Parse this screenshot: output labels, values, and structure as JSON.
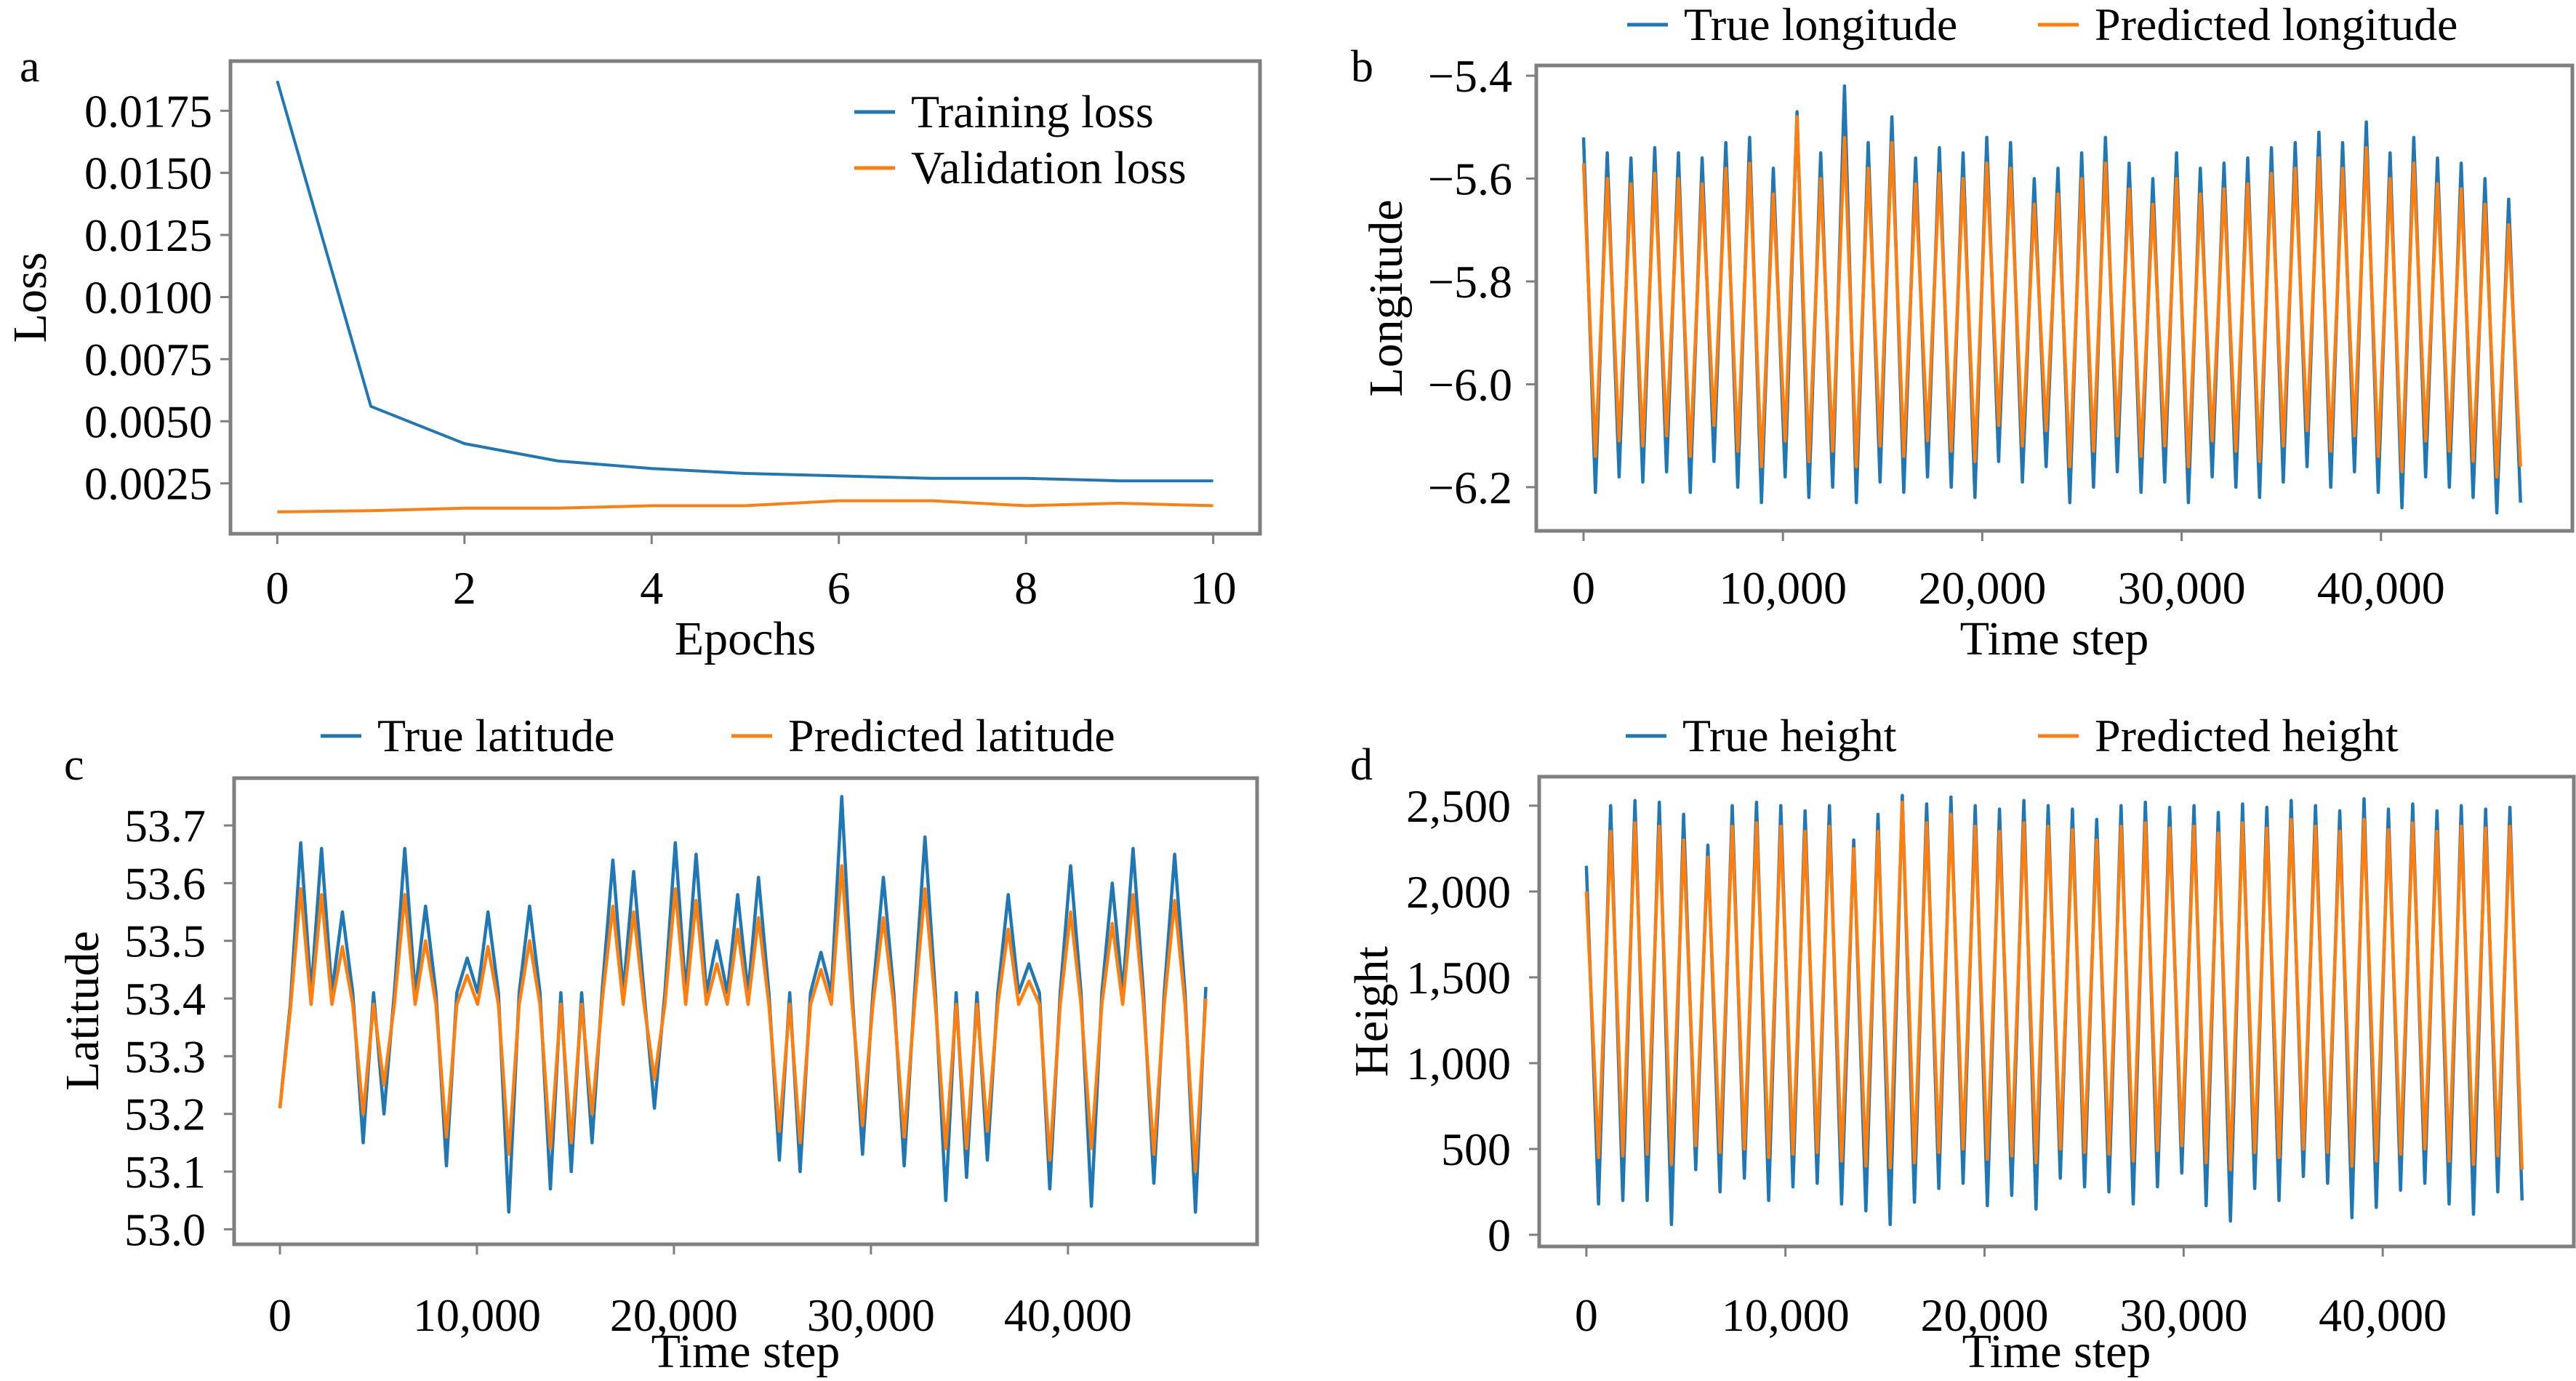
{
  "chart_data": [
    {
      "panel": "a",
      "type": "line",
      "xlabel": "Epochs",
      "ylabel": "Loss",
      "xlim": [
        -0.5,
        10.5
      ],
      "ylim": [
        0.00047,
        0.0195
      ],
      "x_ticks": [
        0,
        2,
        4,
        6,
        8,
        10
      ],
      "x_tick_labels": [
        "0",
        "2",
        "4",
        "6",
        "8",
        "10"
      ],
      "y_ticks": [
        0.0025,
        0.005,
        0.0075,
        0.01,
        0.0125,
        0.015,
        0.0175
      ],
      "y_tick_labels": [
        "0.0025",
        "0.0050",
        "0.0075",
        "0.0100",
        "0.0125",
        "0.0150",
        "0.0175"
      ],
      "legend_position": "top-right",
      "grid": false,
      "x": [
        0,
        1,
        2,
        3,
        4,
        5,
        6,
        7,
        8,
        9,
        10
      ],
      "series": [
        {
          "name": "Training loss",
          "color": "#1f77b4",
          "values": [
            0.0187,
            0.0056,
            0.0041,
            0.0034,
            0.0031,
            0.0029,
            0.0028,
            0.0027,
            0.0027,
            0.0026,
            0.0026
          ]
        },
        {
          "name": "Validation loss",
          "color": "#ff7f0e",
          "values": [
            0.00135,
            0.0014,
            0.0015,
            0.0015,
            0.0016,
            0.0016,
            0.0018,
            0.0018,
            0.0016,
            0.0017,
            0.0016
          ]
        }
      ]
    },
    {
      "panel": "b",
      "type": "line",
      "xlabel": "Time step",
      "ylabel": "Longitude",
      "xlim": [
        -2370,
        49600
      ],
      "ylim": [
        -6.285,
        -5.38
      ],
      "x_range": [
        0,
        47000
      ],
      "x_ticks": [
        0,
        10000,
        20000,
        30000,
        40000
      ],
      "x_tick_labels": [
        "0",
        "10,000",
        "20,000",
        "30,000",
        "40,000"
      ],
      "y_ticks": [
        -6.2,
        -6.0,
        -5.8,
        -5.6,
        -5.4
      ],
      "y_tick_labels": [
        "−6.2",
        "−6.0",
        "−5.8",
        "−5.6",
        "−5.4"
      ],
      "legend_position": "top-outside",
      "grid": false,
      "series": [
        {
          "name": "True longitude",
          "color": "#1f77b4",
          "values": [
            -5.52,
            -6.21,
            -5.55,
            -6.18,
            -5.56,
            -6.19,
            -5.54,
            -6.17,
            -5.55,
            -6.21,
            -5.56,
            -6.15,
            -5.53,
            -6.2,
            -5.52,
            -6.23,
            -5.58,
            -6.18,
            -5.47,
            -6.22,
            -5.55,
            -6.2,
            -5.42,
            -6.23,
            -5.53,
            -6.19,
            -5.48,
            -6.21,
            -5.56,
            -6.18,
            -5.54,
            -6.2,
            -5.55,
            -6.22,
            -5.52,
            -6.15,
            -5.53,
            -6.19,
            -5.6,
            -6.16,
            -5.58,
            -6.23,
            -5.55,
            -6.2,
            -5.52,
            -6.17,
            -5.57,
            -6.21,
            -5.6,
            -6.19,
            -5.55,
            -6.23,
            -5.58,
            -6.18,
            -5.57,
            -6.2,
            -5.56,
            -6.22,
            -5.54,
            -6.19,
            -5.53,
            -6.16,
            -5.51,
            -6.2,
            -5.53,
            -6.17,
            -5.49,
            -6.21,
            -5.55,
            -6.24,
            -5.52,
            -6.18,
            -5.56,
            -6.2,
            -5.57,
            -6.22,
            -5.6,
            -6.25,
            -5.64,
            -6.23
          ]
        },
        {
          "name": "Predicted longitude",
          "color": "#ff7f0e",
          "values": [
            -5.57,
            -6.14,
            -5.6,
            -6.11,
            -5.61,
            -6.12,
            -5.59,
            -6.1,
            -5.6,
            -6.14,
            -5.61,
            -6.08,
            -5.58,
            -6.13,
            -5.57,
            -6.16,
            -5.63,
            -6.11,
            -5.48,
            -6.15,
            -5.6,
            -6.13,
            -5.52,
            -6.16,
            -5.58,
            -6.12,
            -5.53,
            -6.14,
            -5.61,
            -6.11,
            -5.59,
            -6.13,
            -5.6,
            -6.15,
            -5.57,
            -6.08,
            -5.58,
            -6.12,
            -5.65,
            -6.09,
            -5.63,
            -6.16,
            -5.6,
            -6.13,
            -5.57,
            -6.1,
            -5.62,
            -6.14,
            -5.65,
            -6.12,
            -5.6,
            -6.16,
            -5.63,
            -6.11,
            -5.62,
            -6.13,
            -5.61,
            -6.15,
            -5.59,
            -6.12,
            -5.58,
            -6.09,
            -5.56,
            -6.13,
            -5.58,
            -6.1,
            -5.54,
            -6.14,
            -5.6,
            -6.17,
            -5.57,
            -6.11,
            -5.61,
            -6.13,
            -5.62,
            -6.15,
            -5.65,
            -6.18,
            -5.69,
            -6.16
          ]
        }
      ]
    },
    {
      "panel": "c",
      "type": "line",
      "xlabel": "Time step",
      "ylabel": "Latitude",
      "xlim": [
        -2325,
        49600
      ],
      "ylim": [
        52.974,
        53.782
      ],
      "x_range": [
        0,
        47000
      ],
      "x_ticks": [
        0,
        10000,
        20000,
        30000,
        40000
      ],
      "x_tick_labels": [
        "0",
        "10,000",
        "20,000",
        "30,000",
        "40,000"
      ],
      "y_ticks": [
        53.0,
        53.1,
        53.2,
        53.3,
        53.4,
        53.5,
        53.6,
        53.7
      ],
      "y_tick_labels": [
        "53.0",
        "53.1",
        "53.2",
        "53.3",
        "53.4",
        "53.5",
        "53.6",
        "53.7"
      ],
      "legend_position": "top-outside",
      "grid": false,
      "series": [
        {
          "name": "True latitude",
          "color": "#1f77b4",
          "values": [
            53.21,
            53.39,
            53.67,
            53.41,
            53.66,
            53.41,
            53.55,
            53.41,
            53.15,
            53.41,
            53.2,
            53.41,
            53.66,
            53.41,
            53.56,
            53.41,
            53.11,
            53.41,
            53.47,
            53.41,
            53.55,
            53.41,
            53.03,
            53.41,
            53.56,
            53.41,
            53.07,
            53.41,
            53.1,
            53.41,
            53.15,
            53.42,
            53.64,
            53.41,
            53.62,
            53.41,
            53.21,
            53.41,
            53.67,
            53.41,
            53.65,
            53.41,
            53.5,
            53.41,
            53.58,
            53.41,
            53.61,
            53.41,
            53.12,
            53.41,
            53.1,
            53.41,
            53.48,
            53.41,
            53.75,
            53.41,
            53.13,
            53.41,
            53.61,
            53.41,
            53.11,
            53.41,
            53.68,
            53.41,
            53.05,
            53.41,
            53.09,
            53.41,
            53.12,
            53.41,
            53.58,
            53.41,
            53.46,
            53.41,
            53.07,
            53.41,
            53.63,
            53.41,
            53.04,
            53.41,
            53.6,
            53.41,
            53.66,
            53.41,
            53.08,
            53.41,
            53.65,
            53.41,
            53.03,
            53.42
          ]
        },
        {
          "name": "Predicted latitude",
          "color": "#ff7f0e",
          "values": [
            53.21,
            53.38,
            53.59,
            53.39,
            53.58,
            53.39,
            53.49,
            53.39,
            53.2,
            53.39,
            53.25,
            53.39,
            53.58,
            53.39,
            53.5,
            53.39,
            53.16,
            53.39,
            53.44,
            53.39,
            53.49,
            53.39,
            53.13,
            53.39,
            53.5,
            53.39,
            53.14,
            53.39,
            53.15,
            53.39,
            53.2,
            53.4,
            53.56,
            53.39,
            53.55,
            53.39,
            53.26,
            53.39,
            53.59,
            53.39,
            53.57,
            53.39,
            53.46,
            53.39,
            53.52,
            53.39,
            53.54,
            53.39,
            53.17,
            53.39,
            53.15,
            53.39,
            53.45,
            53.39,
            53.63,
            53.39,
            53.18,
            53.39,
            53.54,
            53.39,
            53.16,
            53.39,
            53.59,
            53.39,
            53.14,
            53.39,
            53.14,
            53.39,
            53.17,
            53.39,
            53.52,
            53.39,
            53.43,
            53.39,
            53.12,
            53.39,
            53.55,
            53.39,
            53.14,
            53.39,
            53.53,
            53.39,
            53.58,
            53.39,
            53.13,
            53.39,
            53.57,
            53.39,
            53.1,
            53.4
          ]
        }
      ]
    },
    {
      "panel": "d",
      "type": "line",
      "xlabel": "Time step",
      "ylabel": "Height",
      "xlim": [
        -2370,
        49600
      ],
      "ylim": [
        -68,
        2669
      ],
      "x_range": [
        0,
        47000
      ],
      "x_ticks": [
        0,
        10000,
        20000,
        30000,
        40000
      ],
      "x_tick_labels": [
        "0",
        "10,000",
        "20,000",
        "30,000",
        "40,000"
      ],
      "y_ticks": [
        0,
        500,
        1000,
        1500,
        2000,
        2500
      ],
      "y_tick_labels": [
        "0",
        "500",
        "1,000",
        "1,500",
        "2,000",
        "2,500"
      ],
      "legend_position": "top-outside",
      "grid": false,
      "series": [
        {
          "name": "True height",
          "color": "#1f77b4",
          "values": [
            2150,
            180,
            2500,
            200,
            2530,
            200,
            2520,
            60,
            2450,
            380,
            2270,
            250,
            2500,
            330,
            2520,
            200,
            2500,
            280,
            2470,
            300,
            2500,
            180,
            2300,
            140,
            2450,
            60,
            2560,
            190,
            2510,
            270,
            2550,
            300,
            2500,
            170,
            2480,
            230,
            2530,
            150,
            2500,
            330,
            2480,
            280,
            2420,
            250,
            2500,
            180,
            2520,
            280,
            2490,
            360,
            2500,
            170,
            2460,
            80,
            2510,
            270,
            2490,
            200,
            2530,
            340,
            2500,
            300,
            2470,
            100,
            2540,
            160,
            2480,
            260,
            2510,
            300,
            2470,
            180,
            2500,
            120,
            2480,
            250,
            2490,
            200
          ]
        },
        {
          "name": "Predicted height",
          "color": "#ff7f0e",
          "values": [
            2000,
            450,
            2350,
            460,
            2400,
            470,
            2380,
            410,
            2300,
            520,
            2200,
            480,
            2380,
            500,
            2400,
            450,
            2380,
            470,
            2350,
            480,
            2380,
            430,
            2250,
            400,
            2350,
            390,
            2520,
            420,
            2400,
            480,
            2450,
            500,
            2380,
            440,
            2350,
            460,
            2400,
            420,
            2380,
            500,
            2360,
            480,
            2300,
            470,
            2380,
            430,
            2400,
            490,
            2370,
            520,
            2380,
            420,
            2340,
            380,
            2400,
            480,
            2370,
            450,
            2420,
            500,
            2380,
            480,
            2350,
            400,
            2420,
            430,
            2360,
            470,
            2400,
            500,
            2350,
            430,
            2380,
            410,
            2370,
            460,
            2380,
            380
          ]
        }
      ]
    }
  ]
}
